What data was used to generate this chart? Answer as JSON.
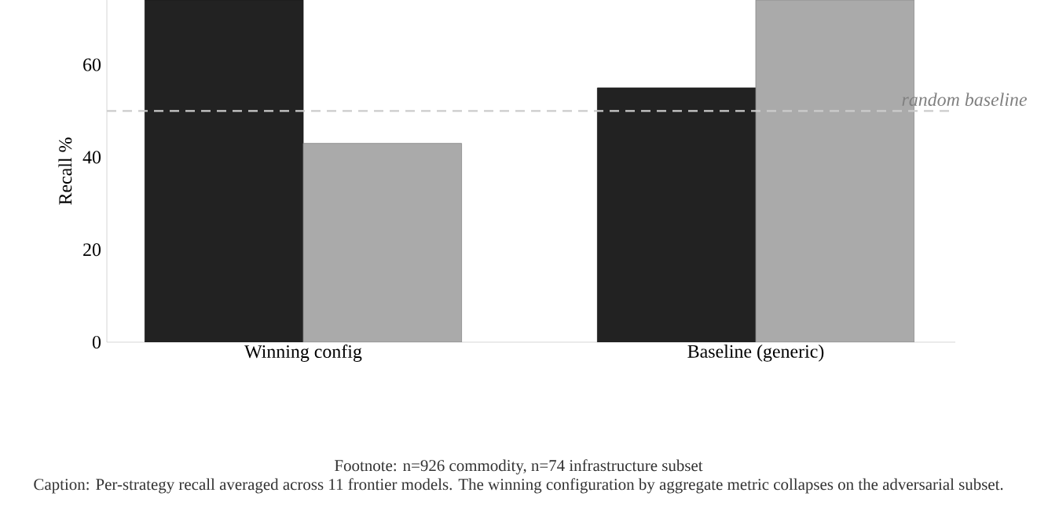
{
  "chart_data": {
    "type": "bar",
    "ylabel": "Recall %",
    "categories": [
      "Winning config",
      "Baseline (generic)"
    ],
    "series": [
      {
        "color": "#222222",
        "values": [
          74,
          55
        ]
      },
      {
        "color": "#aaaaaa",
        "values": [
          43,
          74
        ]
      }
    ],
    "ylim": [
      0,
      74
    ],
    "yticks": [
      0,
      20,
      40,
      60
    ],
    "ref_lines": [
      {
        "axis": "y",
        "value": 50,
        "label": "random baseline",
        "color": "#cccccc",
        "line_style": "dashed"
      }
    ],
    "annotations": [
      "Footnote: n=926 commodity, n=74 infrastructure subset",
      "Caption: Per-strategy recall averaged across 11 frontier models. The winning configuration by aggregate metric collapses on the adversarial subset."
    ]
  }
}
